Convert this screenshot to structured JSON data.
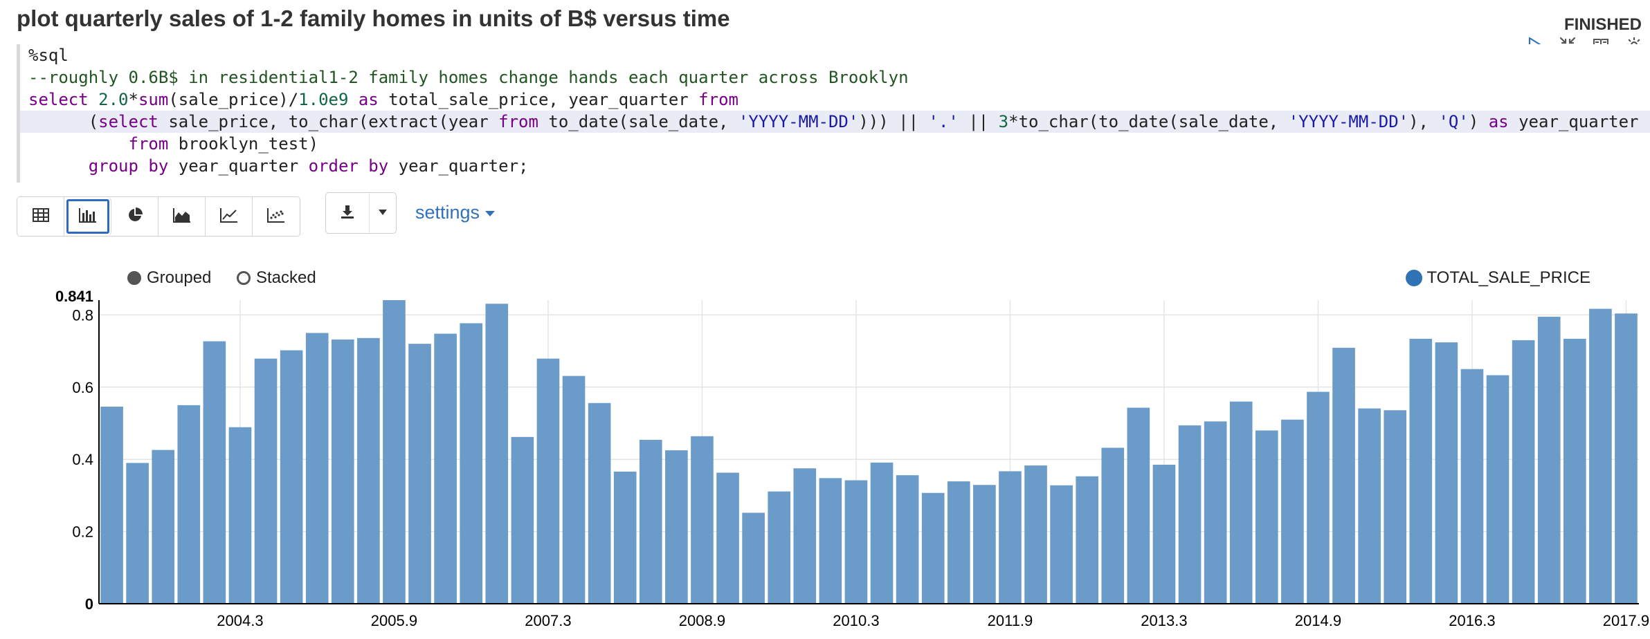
{
  "paragraph": {
    "title": "plot quarterly sales of 1-2 family homes in units of B$ versus time",
    "status": "FINISHED",
    "icons": [
      "run-icon",
      "collapse-icon",
      "book-icon",
      "gear-icon"
    ]
  },
  "code": {
    "interpreter": "%sql",
    "comment": "--roughly 0.6B$ in residential1-2 family homes change hands each quarter across Brooklyn",
    "kw_select": "select",
    "num_2": "2.0",
    "t_star": "*",
    "fn_sum": "sum",
    "t_sum_args": "(sale_price)/",
    "num_1e9": "1.0e9",
    "kw_as": "as",
    "t_total": "total_sale_price, year_quarter",
    "kw_from": "from",
    "t_paren": "(",
    "t_sale_price_to_char": "sale_price, to_char(extract(year",
    "t_to_date": "to_date(sale_date,",
    "str_fmt": "'YYYY-MM-DD'",
    "t_close3": ")))",
    "op_concat": "||",
    "str_dot": "'.'",
    "num_3": "3",
    "t_to_char2": "*to_char(to_date(sale_date,",
    "t_close_comma": "),",
    "str_q": "'Q'",
    "t_close1": ")",
    "t_year_quarter": "year_quarter",
    "t_brooklyn": "brooklyn_test)",
    "kw_group_by": "group by",
    "kw_order_by": "order by",
    "t_yq_semi": "year_quarter;"
  },
  "toolbar": {
    "viz_buttons": [
      "table-icon",
      "bar-chart-icon",
      "pie-chart-icon",
      "area-chart-icon",
      "line-chart-icon",
      "scatter-chart-icon"
    ],
    "active_viz": "bar-chart-icon",
    "settings_label": "settings"
  },
  "chart_options": {
    "grouped_label": "Grouped",
    "stacked_label": "Stacked",
    "selected": "Grouped"
  },
  "colors": {
    "bar": "#6b9bc9",
    "legend": "#2f73b5",
    "accent": "#2f72b8"
  },
  "chart_data": {
    "type": "bar",
    "x_key": "year_quarter",
    "x_tick_labels": [
      "2004.3",
      "2005.9",
      "2007.3",
      "2008.9",
      "2010.3",
      "2011.9",
      "2013.3",
      "2014.9",
      "2016.3",
      "2017.9"
    ],
    "x_tick_indices": [
      5,
      11,
      17,
      23,
      29,
      35,
      41,
      47,
      53,
      59
    ],
    "ylim": [
      0,
      0.841
    ],
    "y_ticks": [
      0,
      0.2,
      0.4,
      0.6,
      0.8
    ],
    "y_max_label": "0.841",
    "grid": true,
    "legend": "top-right",
    "series": [
      {
        "name": "TOTAL_SALE_PRICE",
        "values": [
          0.546,
          0.39,
          0.426,
          0.55,
          0.727,
          0.489,
          0.679,
          0.702,
          0.75,
          0.732,
          0.736,
          0.841,
          0.72,
          0.748,
          0.777,
          0.831,
          0.462,
          0.679,
          0.631,
          0.556,
          0.366,
          0.454,
          0.425,
          0.464,
          0.363,
          0.252,
          0.311,
          0.375,
          0.348,
          0.342,
          0.391,
          0.356,
          0.307,
          0.339,
          0.329,
          0.367,
          0.383,
          0.328,
          0.353,
          0.432,
          0.543,
          0.385,
          0.494,
          0.505,
          0.56,
          0.48,
          0.51,
          0.587,
          0.709,
          0.541,
          0.536,
          0.734,
          0.724,
          0.65,
          0.633,
          0.73,
          0.795,
          0.734,
          0.817,
          0.804
        ]
      }
    ]
  }
}
